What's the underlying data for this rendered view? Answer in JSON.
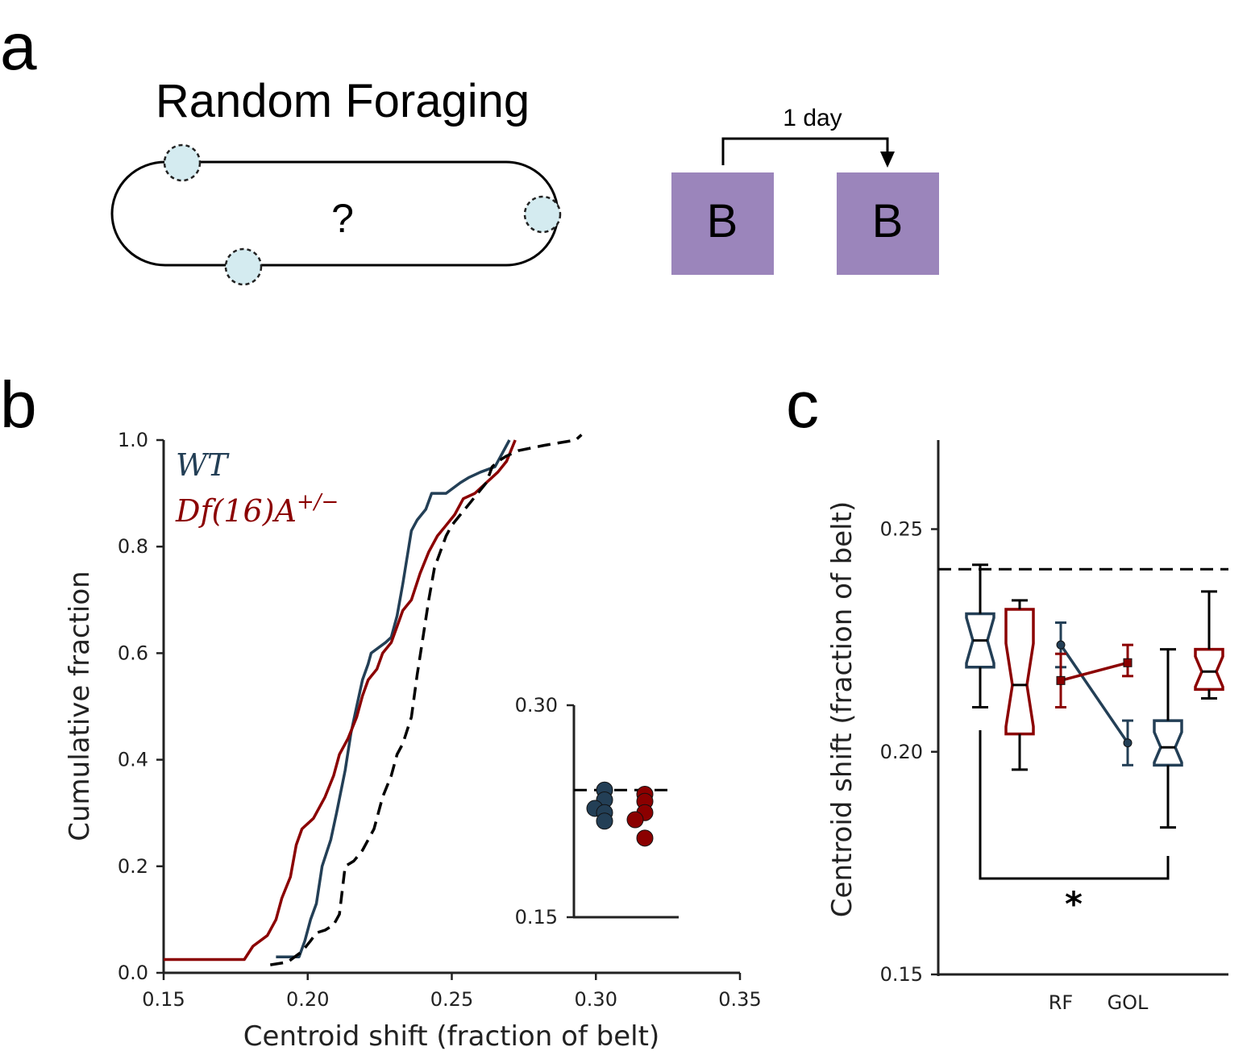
{
  "panel_a": {
    "letter": "a",
    "title": "Random Foraging",
    "question": "?",
    "interval_label": "1 day",
    "box_left": "B",
    "box_right": "B",
    "colors": {
      "box": "#9b85bb",
      "reward_zone": "#d4ebf0"
    }
  },
  "panel_b": {
    "letter": "b"
  },
  "panel_c": {
    "letter": "c"
  },
  "colors": {
    "wt": "#233f56",
    "df": "#8b0000",
    "shuffle": "#000000"
  },
  "chart_data": [
    {
      "id": "panel_b_main",
      "type": "line",
      "xlabel": "Centroid shift (fraction of belt)",
      "ylabel": "Cumulative fraction",
      "xlim": [
        0.15,
        0.35
      ],
      "ylim": [
        0.0,
        1.0
      ],
      "xticks": [
        "0.15",
        "0.20",
        "0.25",
        "0.30",
        "0.35"
      ],
      "yticks": [
        "0.0",
        "0.2",
        "0.4",
        "0.6",
        "0.8",
        "1.0"
      ],
      "legend": [
        {
          "name": "WT",
          "series": "wt"
        },
        {
          "name": "Df(16)A",
          "superscript": "+/−",
          "series": "df"
        }
      ],
      "series": [
        {
          "key": "wt",
          "style": "solid",
          "x": [
            0.189,
            0.197,
            0.199,
            0.201,
            0.203,
            0.205,
            0.208,
            0.21,
            0.213,
            0.215,
            0.217,
            0.219,
            0.221,
            0.222,
            0.227,
            0.229,
            0.231,
            0.233,
            0.236,
            0.238,
            0.241,
            0.243,
            0.245,
            0.248,
            0.253,
            0.256,
            0.26,
            0.265,
            0.267,
            0.27
          ],
          "y": [
            0.03,
            0.03,
            0.06,
            0.1,
            0.13,
            0.2,
            0.25,
            0.3,
            0.38,
            0.45,
            0.5,
            0.55,
            0.58,
            0.6,
            0.62,
            0.63,
            0.67,
            0.73,
            0.83,
            0.85,
            0.87,
            0.9,
            0.9,
            0.9,
            0.92,
            0.93,
            0.94,
            0.95,
            0.97,
            1.0
          ]
        },
        {
          "key": "df",
          "style": "solid",
          "x": [
            0.15,
            0.178,
            0.181,
            0.186,
            0.189,
            0.191,
            0.194,
            0.196,
            0.198,
            0.202,
            0.206,
            0.209,
            0.211,
            0.214,
            0.217,
            0.219,
            0.221,
            0.224,
            0.226,
            0.229,
            0.231,
            0.233,
            0.236,
            0.239,
            0.242,
            0.245,
            0.248,
            0.251,
            0.254,
            0.258,
            0.262,
            0.266,
            0.269,
            0.272
          ],
          "y": [
            0.025,
            0.025,
            0.05,
            0.07,
            0.1,
            0.14,
            0.18,
            0.24,
            0.27,
            0.29,
            0.33,
            0.37,
            0.41,
            0.44,
            0.48,
            0.52,
            0.55,
            0.57,
            0.6,
            0.62,
            0.65,
            0.68,
            0.7,
            0.75,
            0.79,
            0.82,
            0.84,
            0.86,
            0.89,
            0.9,
            0.92,
            0.94,
            0.96,
            1.0
          ]
        },
        {
          "key": "shuffle",
          "style": "dashed",
          "x": [
            0.187,
            0.193,
            0.198,
            0.201,
            0.203,
            0.206,
            0.209,
            0.211,
            0.213,
            0.216,
            0.219,
            0.223,
            0.226,
            0.229,
            0.231,
            0.233,
            0.236,
            0.238,
            0.24,
            0.242,
            0.244,
            0.246,
            0.248,
            0.25,
            0.253,
            0.256,
            0.259,
            0.262,
            0.264,
            0.266,
            0.269,
            0.273,
            0.282,
            0.293,
            0.295
          ],
          "y": [
            0.015,
            0.02,
            0.04,
            0.06,
            0.075,
            0.08,
            0.09,
            0.11,
            0.2,
            0.21,
            0.23,
            0.27,
            0.33,
            0.37,
            0.41,
            0.43,
            0.48,
            0.56,
            0.63,
            0.7,
            0.76,
            0.79,
            0.82,
            0.84,
            0.86,
            0.88,
            0.9,
            0.92,
            0.95,
            0.96,
            0.97,
            0.98,
            0.99,
            1.0,
            1.01
          ]
        }
      ]
    },
    {
      "id": "panel_b_inset",
      "type": "scatter",
      "ylim": [
        0.15,
        0.3
      ],
      "yticks": [
        "0.30",
        "0.15"
      ],
      "shuffle_level": 0.24,
      "series": [
        {
          "key": "wt",
          "values": [
            0.24,
            0.233,
            0.227,
            0.224,
            0.218
          ]
        },
        {
          "key": "df",
          "values": [
            0.237,
            0.232,
            0.224,
            0.219,
            0.206
          ]
        }
      ]
    },
    {
      "id": "panel_c",
      "type": "box",
      "ylabel": "Centroid shift (fraction of belt)",
      "ylim": [
        0.15,
        0.27
      ],
      "yticks": [
        "0.25",
        "0.20",
        "0.15"
      ],
      "xticks": [
        "RF",
        "GOL"
      ],
      "shuffle_level": 0.241,
      "significance": "*",
      "boxes": [
        {
          "key": "wt",
          "group": "RF",
          "whisker_low": 0.21,
          "q1": 0.219,
          "median": 0.225,
          "q3": 0.231,
          "whisker_high": 0.242
        },
        {
          "key": "df",
          "group": "RF",
          "whisker_low": 0.196,
          "q1": 0.204,
          "median": 0.215,
          "q3": 0.232,
          "whisker_high": 0.234
        },
        {
          "key": "wt",
          "group": "GOL",
          "whisker_low": 0.183,
          "q1": 0.197,
          "median": 0.201,
          "q3": 0.207,
          "whisker_high": 0.223
        },
        {
          "key": "df",
          "group": "GOL",
          "whisker_low": 0.212,
          "q1": 0.214,
          "median": 0.218,
          "q3": 0.223,
          "whisker_high": 0.236
        }
      ],
      "means": [
        {
          "key": "wt",
          "RF": {
            "mean": 0.224,
            "lo": 0.219,
            "hi": 0.229
          },
          "GOL": {
            "mean": 0.202,
            "lo": 0.197,
            "hi": 0.207
          }
        },
        {
          "key": "df",
          "RF": {
            "mean": 0.216,
            "lo": 0.21,
            "hi": 0.222
          },
          "GOL": {
            "mean": 0.22,
            "lo": 0.217,
            "hi": 0.224
          }
        }
      ]
    }
  ]
}
